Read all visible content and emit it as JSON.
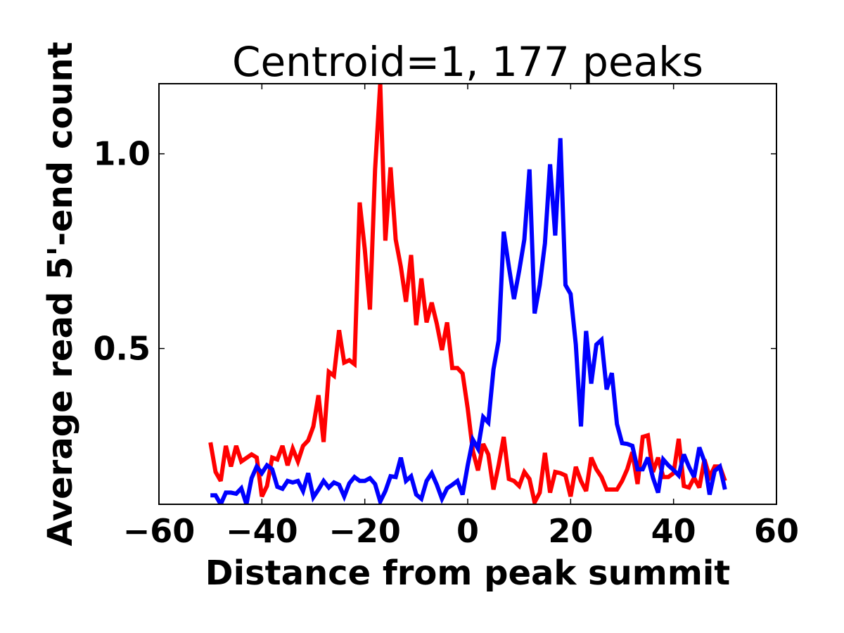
{
  "chart_data": {
    "type": "line",
    "title": "Centroid=1, 177 peaks",
    "xlabel": "Distance from peak summit",
    "ylabel": "Average read 5'-end count",
    "xlim": [
      -60,
      60
    ],
    "ylim": [
      0.1,
      1.18
    ],
    "xticks": [
      -60,
      -40,
      -20,
      0,
      20,
      40,
      60
    ],
    "xtick_labels": [
      "−60",
      "−40",
      "−20",
      "0",
      "20",
      "40",
      "60"
    ],
    "yticks": [
      0.5,
      1.0
    ],
    "ytick_labels": [
      "0.5",
      "1.0"
    ],
    "grid": false,
    "x_start": -50,
    "x_step": 1,
    "series": [
      {
        "name": "red",
        "color": "#ff0000",
        "values": [
          0.259,
          0.183,
          0.16,
          0.25,
          0.197,
          0.25,
          0.21,
          0.219,
          0.228,
          0.22,
          0.12,
          0.147,
          0.22,
          0.215,
          0.25,
          0.2,
          0.243,
          0.21,
          0.25,
          0.264,
          0.3,
          0.38,
          0.26,
          0.44,
          0.43,
          0.547,
          0.464,
          0.47,
          0.46,
          0.875,
          0.754,
          0.6,
          0.96,
          1.18,
          0.777,
          0.965,
          0.78,
          0.71,
          0.62,
          0.74,
          0.56,
          0.68,
          0.567,
          0.618,
          0.563,
          0.496,
          0.567,
          0.45,
          0.45,
          0.436,
          0.346,
          0.237,
          0.187,
          0.255,
          0.228,
          0.138,
          0.2,
          0.273,
          0.165,
          0.16,
          0.147,
          0.183,
          0.165,
          0.105,
          0.13,
          0.232,
          0.13,
          0.183,
          0.18,
          0.174,
          0.12,
          0.196,
          0.16,
          0.134,
          0.22,
          0.19,
          0.17,
          0.138,
          0.138,
          0.138,
          0.16,
          0.19,
          0.234,
          0.152,
          0.273,
          0.277,
          0.183,
          0.22,
          0.17,
          0.17,
          0.18,
          0.268,
          0.147,
          0.143,
          0.168,
          0.143,
          0.215,
          0.17,
          0.197,
          0.197,
          0.16
        ]
      },
      {
        "name": "blue",
        "color": "#0000ff",
        "values": [
          0.123,
          0.123,
          0.1,
          0.13,
          0.13,
          0.127,
          0.141,
          0.1,
          0.167,
          0.197,
          0.18,
          0.2,
          0.19,
          0.145,
          0.14,
          0.16,
          0.156,
          0.16,
          0.134,
          0.18,
          0.118,
          0.138,
          0.16,
          0.143,
          0.156,
          0.15,
          0.12,
          0.154,
          0.17,
          0.16,
          0.16,
          0.167,
          0.152,
          0.107,
          0.134,
          0.172,
          0.17,
          0.22,
          0.16,
          0.172,
          0.125,
          0.114,
          0.16,
          0.18,
          0.15,
          0.114,
          0.141,
          0.15,
          0.16,
          0.125,
          0.2,
          0.266,
          0.243,
          0.324,
          0.31,
          0.446,
          0.52,
          0.8,
          0.71,
          0.627,
          0.7,
          0.78,
          0.96,
          0.59,
          0.663,
          0.77,
          0.973,
          0.79,
          1.04,
          0.663,
          0.64,
          0.51,
          0.3,
          0.545,
          0.41,
          0.51,
          0.522,
          0.395,
          0.437,
          0.306,
          0.257,
          0.255,
          0.25,
          0.19,
          0.19,
          0.22,
          0.168,
          0.13,
          0.215,
          0.2,
          0.188,
          0.174,
          0.228,
          0.196,
          0.17,
          0.246,
          0.21,
          0.125,
          0.186,
          0.197,
          0.138
        ]
      }
    ]
  }
}
